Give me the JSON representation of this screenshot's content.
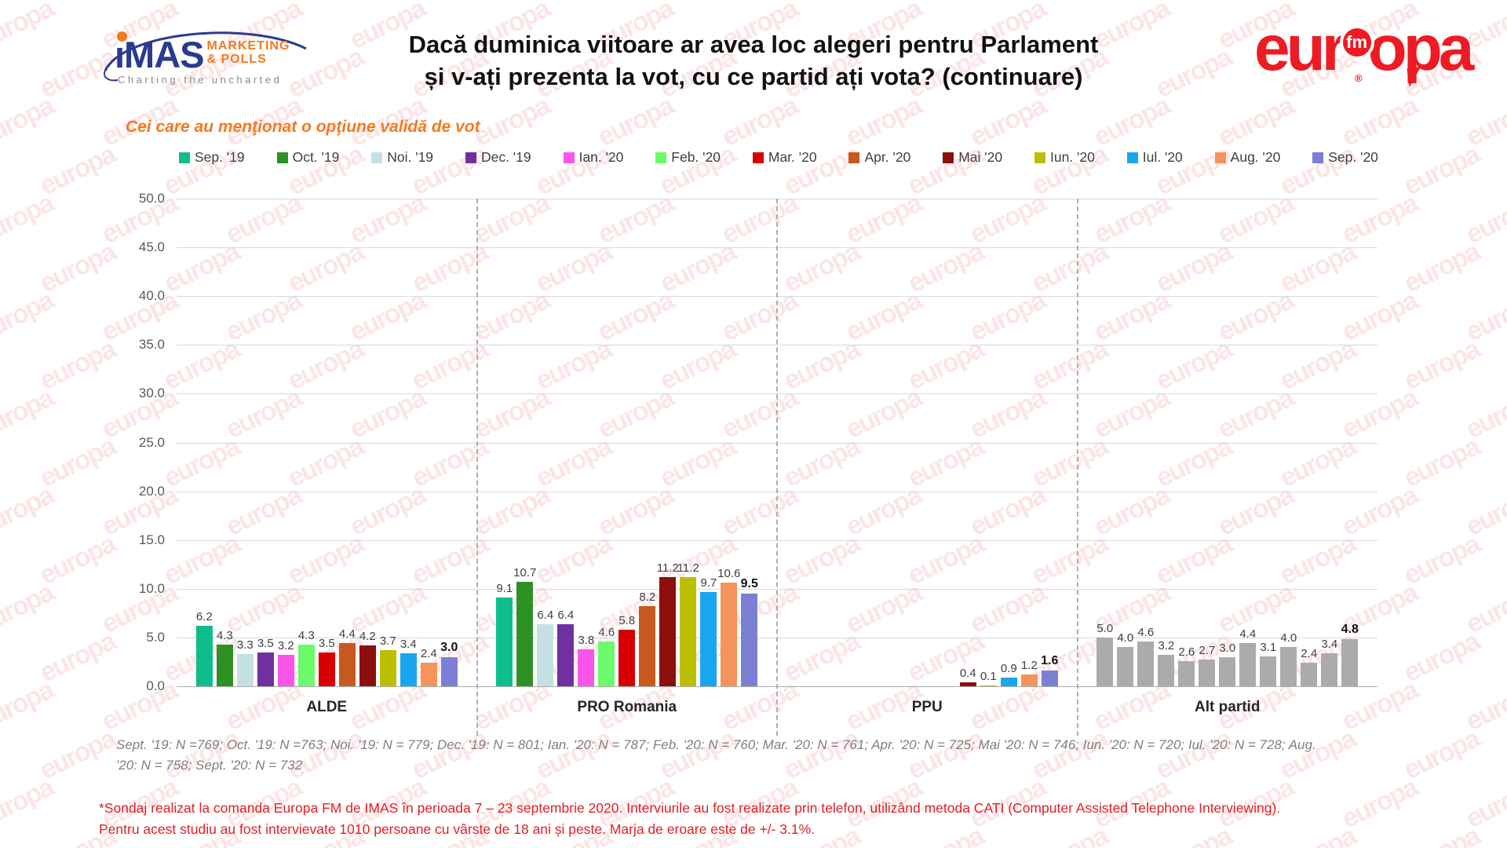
{
  "header": {
    "imas_logo": {
      "wordmark": "ıMAS",
      "line1": "MARKETING",
      "line2": "& POLLS",
      "tagline": "Charting the uncharted",
      "navy": "#2B3A8F",
      "orange": "#F47920"
    },
    "title_line1": "Dacă duminica viitoare ar avea loc alegeri pentru Parlament",
    "title_line2": "și v-ați prezenta la vot, cu ce partid ați vota? (continuare)",
    "europa_logo": {
      "left": "eur",
      "fm": "fm",
      "right": "opa",
      "reg": "®",
      "red": "#ED1C24"
    }
  },
  "subtitle": {
    "text": "Cei care au menţionat o opţiune validă de vot",
    "color": "#F47920"
  },
  "chart_data": {
    "type": "bar",
    "title": "Dacă duminica viitoare ar avea loc alegeri pentru Parlament și v-ați prezenta la vot, cu ce partid ați vota? (continuare)",
    "subtitle": "Cei care au menţionat o opţiune validă de vot",
    "categories": [
      "ALDE",
      "PRO Romania",
      "PPU",
      "Alt partid"
    ],
    "series": [
      {
        "name": "Sep. '19",
        "color": "#0DBE8C",
        "values": [
          6.2,
          9.1,
          null,
          5.0
        ]
      },
      {
        "name": "Oct. '19",
        "color": "#2E9125",
        "values": [
          4.3,
          10.7,
          null,
          4.0
        ]
      },
      {
        "name": "Noi. '19",
        "color": "#C5E0E4",
        "values": [
          3.3,
          6.4,
          null,
          4.6
        ]
      },
      {
        "name": "Dec. '19",
        "color": "#7030A0",
        "values": [
          3.5,
          6.4,
          null,
          3.2
        ]
      },
      {
        "name": "Ian. '20",
        "color": "#F955EA",
        "values": [
          3.2,
          3.8,
          null,
          2.6
        ]
      },
      {
        "name": "Feb. '20",
        "color": "#6CFA6C",
        "values": [
          4.3,
          4.6,
          null,
          2.7
        ]
      },
      {
        "name": "Mar. '20",
        "color": "#D60000",
        "values": [
          3.5,
          5.8,
          null,
          3.0
        ]
      },
      {
        "name": "Apr. '20",
        "color": "#C7591F",
        "values": [
          4.4,
          8.2,
          null,
          4.4
        ]
      },
      {
        "name": "Mai '20",
        "color": "#8C0F0B",
        "values": [
          4.2,
          11.2,
          0.4,
          3.1
        ]
      },
      {
        "name": "Iun. '20",
        "color": "#BCBE00",
        "values": [
          3.7,
          11.2,
          0.1,
          4.0
        ]
      },
      {
        "name": "Iul. '20",
        "color": "#18A7EF",
        "values": [
          3.4,
          9.7,
          0.9,
          2.4
        ]
      },
      {
        "name": "Aug. '20",
        "color": "#F4935A",
        "values": [
          2.4,
          10.6,
          1.2,
          3.4
        ]
      },
      {
        "name": "Sep. '20",
        "color": "#7B80D4",
        "values": [
          3.0,
          9.5,
          1.6,
          4.8
        ]
      }
    ],
    "uniform_category_colors": {
      "Alt partid": "#ABABAB"
    },
    "ylim": [
      0,
      50
    ],
    "ytick_step": 5,
    "grid": true,
    "legend_position": "top",
    "last_series_bold": true
  },
  "footnotes": {
    "sample_sizes": "Sept. '19: N =769; Oct. '19: N =763; Noi. '19: N = 779; Dec. '19: N = 801; Ian. '20: N = 787; Feb. '20: N = 760; Mar. '20: N = 761; Apr. '20: N = 725; Mai '20: N = 746; Iun. '20: N = 720; Iul. '20: N = 728; Aug. '20: N = 758; Sept. '20: N = 732",
    "methodology_line1": "*Sondaj realizat la comanda Europa FM de IMAS în perioada  7 – 23 septembrie 2020. Interviurile au fost realizate prin telefon, utilizând metoda CATI (Computer Assisted Telephone Interviewing).",
    "methodology_line2": "Pentru acest studiu au fost intervievate 1010 persoane cu vârste de 18 ani și peste. Marja de eroare este de +/- 3.1%.",
    "methodology_color": "#E31E24"
  },
  "watermark": {
    "text": "europa",
    "color": "#ED1C24",
    "opacity": 0.11
  }
}
